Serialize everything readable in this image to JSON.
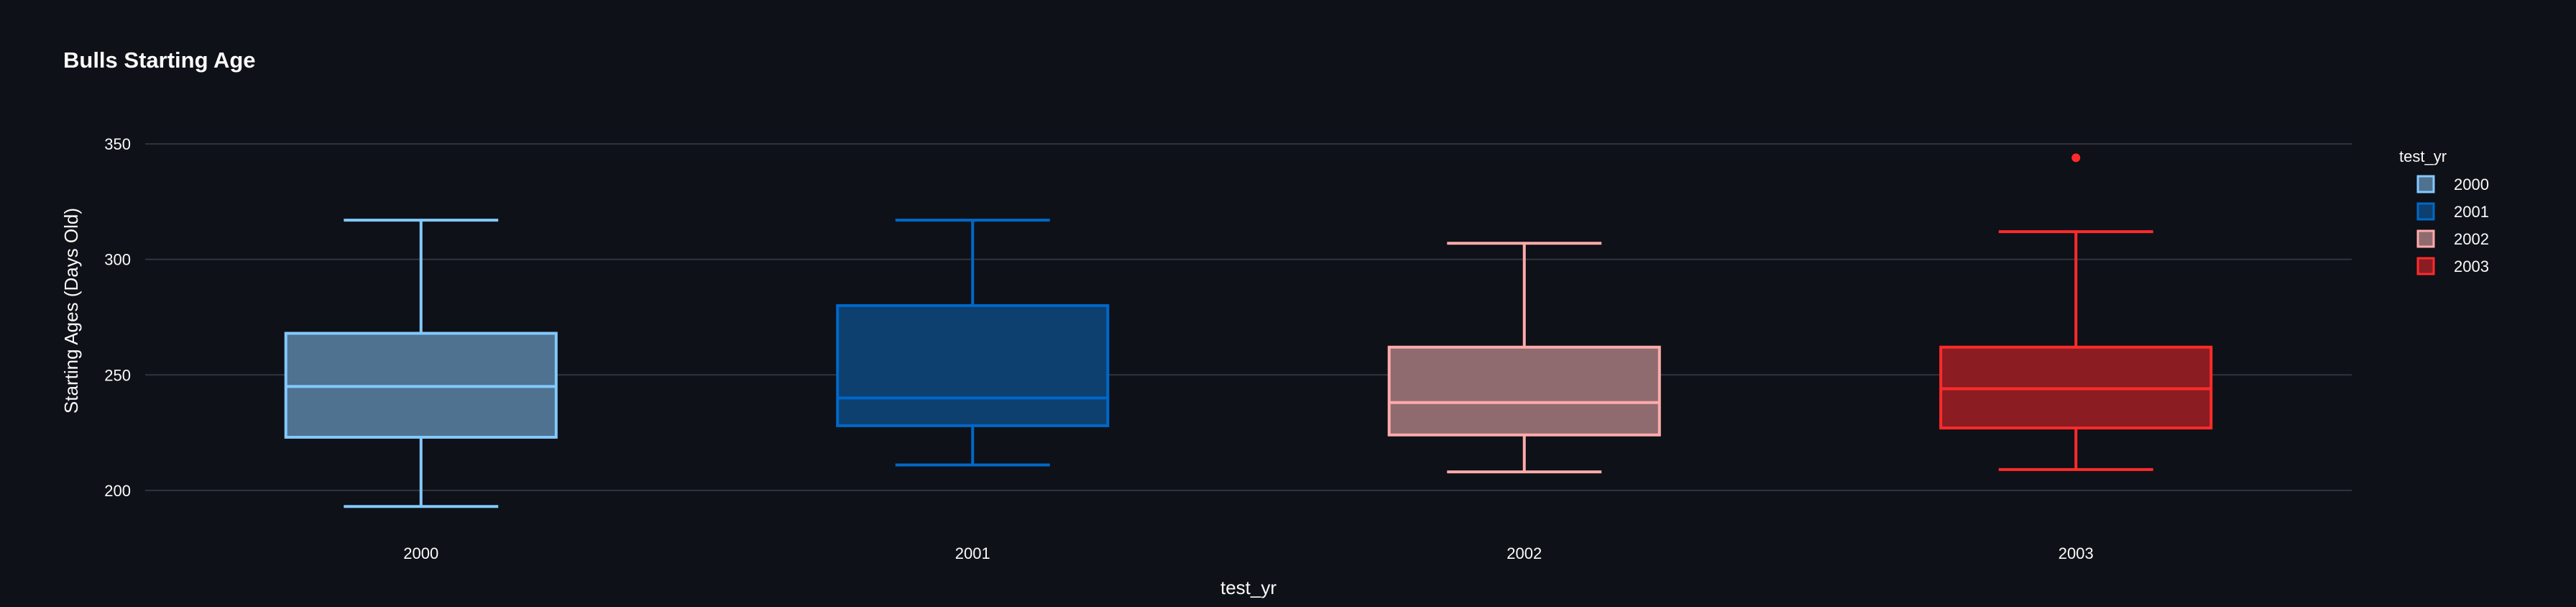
{
  "chart_data": {
    "type": "box",
    "title": "Bulls Starting Age",
    "xlabel": "test_yr",
    "ylabel": "Starting Ages (Days Old)",
    "categories": [
      "2000",
      "2001",
      "2002",
      "2003"
    ],
    "ylim": [
      185,
      360
    ],
    "yticks": [
      200,
      250,
      300,
      350
    ],
    "grid": true,
    "legend": {
      "title": "test_yr",
      "position": "top-right"
    },
    "series": [
      {
        "name": "2000",
        "color": "#83c9ff",
        "fill": "#4f7290",
        "whisker_low": 193,
        "q1": 223,
        "median": 245,
        "q3": 268,
        "whisker_high": 317,
        "outliers": []
      },
      {
        "name": "2001",
        "color": "#0068c9",
        "fill": "#0d3f6f",
        "whisker_low": 211,
        "q1": 228,
        "median": 240,
        "q3": 280,
        "whisker_high": 317,
        "outliers": []
      },
      {
        "name": "2002",
        "color": "#ffabab",
        "fill": "#8f6b70",
        "whisker_low": 208,
        "q1": 224,
        "median": 238,
        "q3": 262,
        "whisker_high": 307,
        "outliers": []
      },
      {
        "name": "2003",
        "color": "#ff2b2b",
        "fill": "#8a1c22",
        "whisker_low": 209,
        "q1": 227,
        "median": 244,
        "q3": 262,
        "whisker_high": 312,
        "outliers": [
          344
        ]
      }
    ]
  }
}
